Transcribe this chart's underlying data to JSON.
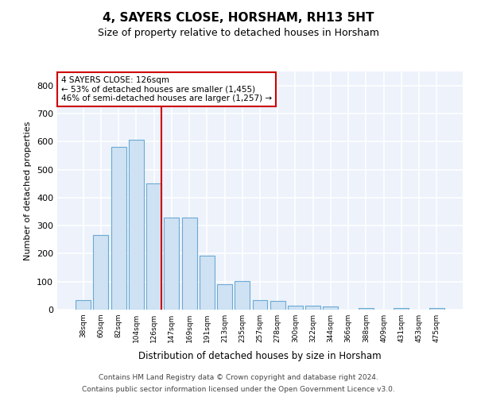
{
  "title": "4, SAYERS CLOSE, HORSHAM, RH13 5HT",
  "subtitle": "Size of property relative to detached houses in Horsham",
  "xlabel": "Distribution of detached houses by size in Horsham",
  "ylabel": "Number of detached properties",
  "bins": [
    "38sqm",
    "60sqm",
    "82sqm",
    "104sqm",
    "126sqm",
    "147sqm",
    "169sqm",
    "191sqm",
    "213sqm",
    "235sqm",
    "257sqm",
    "278sqm",
    "300sqm",
    "322sqm",
    "344sqm",
    "366sqm",
    "388sqm",
    "409sqm",
    "431sqm",
    "453sqm",
    "475sqm"
  ],
  "values": [
    35,
    265,
    580,
    605,
    450,
    328,
    328,
    194,
    90,
    101,
    35,
    30,
    15,
    13,
    10,
    0,
    5,
    0,
    5,
    0,
    5
  ],
  "bar_color": "#cfe2f3",
  "bar_edge_color": "#6aaad4",
  "red_line_bin_index": 4,
  "annotation_line1": "4 SAYERS CLOSE: 126sqm",
  "annotation_line2": "← 53% of detached houses are smaller (1,455)",
  "annotation_line3": "46% of semi-detached houses are larger (1,257) →",
  "annotation_box_color": "#ffffff",
  "annotation_box_edge": "#cc0000",
  "red_line_color": "#cc0000",
  "ylim": [
    0,
    850
  ],
  "yticks": [
    0,
    100,
    200,
    300,
    400,
    500,
    600,
    700,
    800
  ],
  "plot_bg_color": "#edf2fb",
  "grid_color": "#ffffff",
  "footer_line1": "Contains HM Land Registry data © Crown copyright and database right 2024.",
  "footer_line2": "Contains public sector information licensed under the Open Government Licence v3.0."
}
